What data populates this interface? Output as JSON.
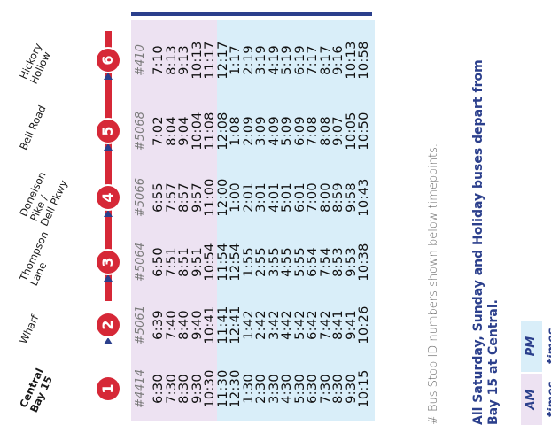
{
  "stops": [
    {
      "number": "1",
      "name": "Central\nBay 15"
    },
    {
      "number": "2",
      "name": "Wharf"
    },
    {
      "number": "3",
      "name": "Thompson\nLane"
    },
    {
      "number": "4",
      "name": "Donelson\nPike /\nDell Pkwy"
    },
    {
      "number": "5",
      "name": "Bell Road"
    },
    {
      "number": "6",
      "name": "Hickory\nHollow"
    }
  ],
  "stop_ids": [
    "#4414",
    "#5061",
    "#5064",
    "#5066",
    "#5068",
    "#410"
  ],
  "schedule": [
    [
      "6:30",
      "6:39",
      "6:50",
      "6:55",
      "7:02",
      "7:10"
    ],
    [
      "7:30",
      "7:40",
      "7:51",
      "7:57",
      "8:04",
      "8:13"
    ],
    [
      "8:30",
      "8:40",
      "8:51",
      "8:57",
      "9:04",
      "9:13"
    ],
    [
      "9:30",
      "9:40",
      "9:51",
      "9:57",
      "10:04",
      "10:13"
    ],
    [
      "10:30",
      "10:41",
      "10:54",
      "11:00",
      "11:08",
      "11:17"
    ],
    [
      "11:30",
      "11:41",
      "11:54",
      "12:00",
      "12:08",
      "12:17"
    ],
    [
      "12:30",
      "12:41",
      "12:54",
      "1:00",
      "1:08",
      "1:17"
    ],
    [
      "1:30",
      "1:42",
      "1:55",
      "2:01",
      "2:09",
      "2:19"
    ],
    [
      "2:30",
      "2:42",
      "2:55",
      "3:01",
      "3:09",
      "3:19"
    ],
    [
      "3:30",
      "3:42",
      "3:55",
      "4:01",
      "4:09",
      "4:19"
    ],
    [
      "4:30",
      "4:42",
      "4:55",
      "5:01",
      "5:09",
      "5:19"
    ],
    [
      "5:30",
      "5:42",
      "5:55",
      "6:01",
      "6:09",
      "6:19"
    ],
    [
      "6:30",
      "6:42",
      "6:54",
      "7:00",
      "7:08",
      "7:17"
    ],
    [
      "7:30",
      "7:42",
      "7:54",
      "8:00",
      "8:08",
      "8:17"
    ],
    [
      "8:30",
      "8:41",
      "8:53",
      "8:59",
      "9:07",
      "9:16"
    ],
    [
      "9:30",
      "9:41",
      "9:53",
      "9:58",
      "10:05",
      "10:13"
    ],
    [
      "10:15",
      "10:26",
      "10:38",
      "10:43",
      "10:50",
      "10:58"
    ]
  ],
  "am_rows": 5,
  "footnote": "# Bus Stop ID numbers shown below timepoints.",
  "callout": "All Saturday, Sunday and Holiday buses depart from Bay 15 at Central.",
  "legend": {
    "am": "AM times",
    "pm": "PM times"
  },
  "colors": {
    "route_red": "#d62837",
    "navy": "#2b3f8c",
    "am_bg": "#ede2f2",
    "pm_bg": "#d9eef9"
  }
}
